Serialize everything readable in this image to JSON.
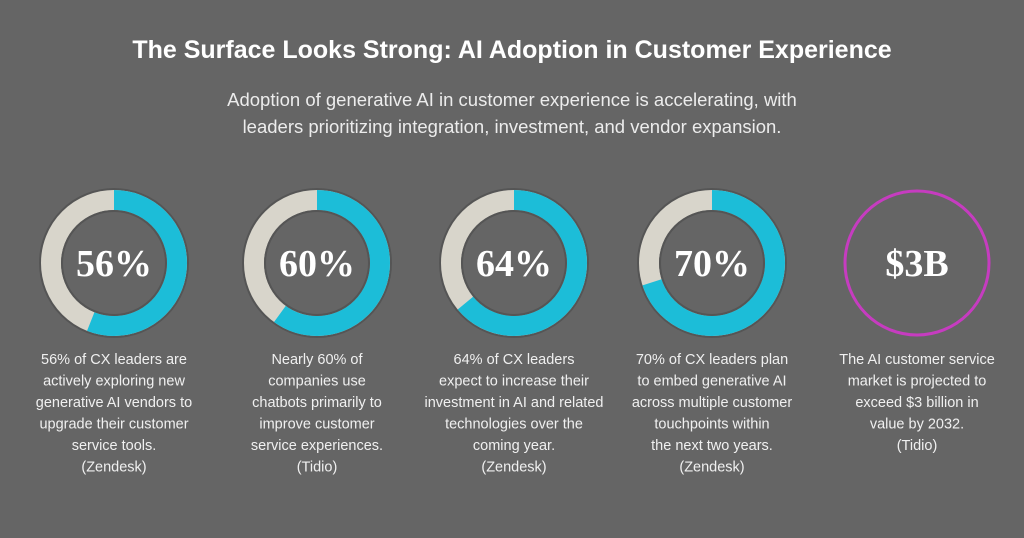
{
  "header": {
    "title": "The Surface Looks Strong: AI Adoption in Customer Experience",
    "subtitle": [
      "Adoption of generative AI in customer experience is accelerating, with",
      "leaders prioritizing integration, investment, and vendor expansion."
    ]
  },
  "stats": [
    {
      "value": 56,
      "label": "56%",
      "ring": "donut",
      "description": [
        "56% of CX leaders are",
        "actively exploring new",
        "generative AI vendors to",
        "upgrade their customer",
        "service tools.",
        "(Zendesk)"
      ]
    },
    {
      "value": 60,
      "label": "60%",
      "ring": "donut",
      "description": [
        "Nearly 60% of",
        "companies use",
        "chatbots primarily to",
        "improve customer",
        "service experiences.",
        "(Tidio)"
      ]
    },
    {
      "value": 64,
      "label": "64%",
      "ring": "donut",
      "description": [
        "64% of CX leaders",
        "expect to increase their",
        "investment in AI and related",
        "technologies over the",
        "coming year.",
        "(Zendesk)"
      ]
    },
    {
      "value": 70,
      "label": "70%",
      "ring": "donut",
      "description": [
        "70% of CX leaders plan",
        "to embed generative AI",
        "across multiple customer",
        "touchpoints within",
        "the next two years.",
        "(Zendesk)"
      ]
    },
    {
      "value": 3000000000,
      "label": "$3B",
      "ring": "outline",
      "description": [
        "The AI customer service",
        "market is projected to",
        "exceed $3 billion in",
        "value by 2032.",
        "(Tidio)"
      ]
    }
  ],
  "colors": {
    "filled": "#1cbdd8",
    "rest": "#d8d5cb",
    "outline": "#c63cc0"
  }
}
